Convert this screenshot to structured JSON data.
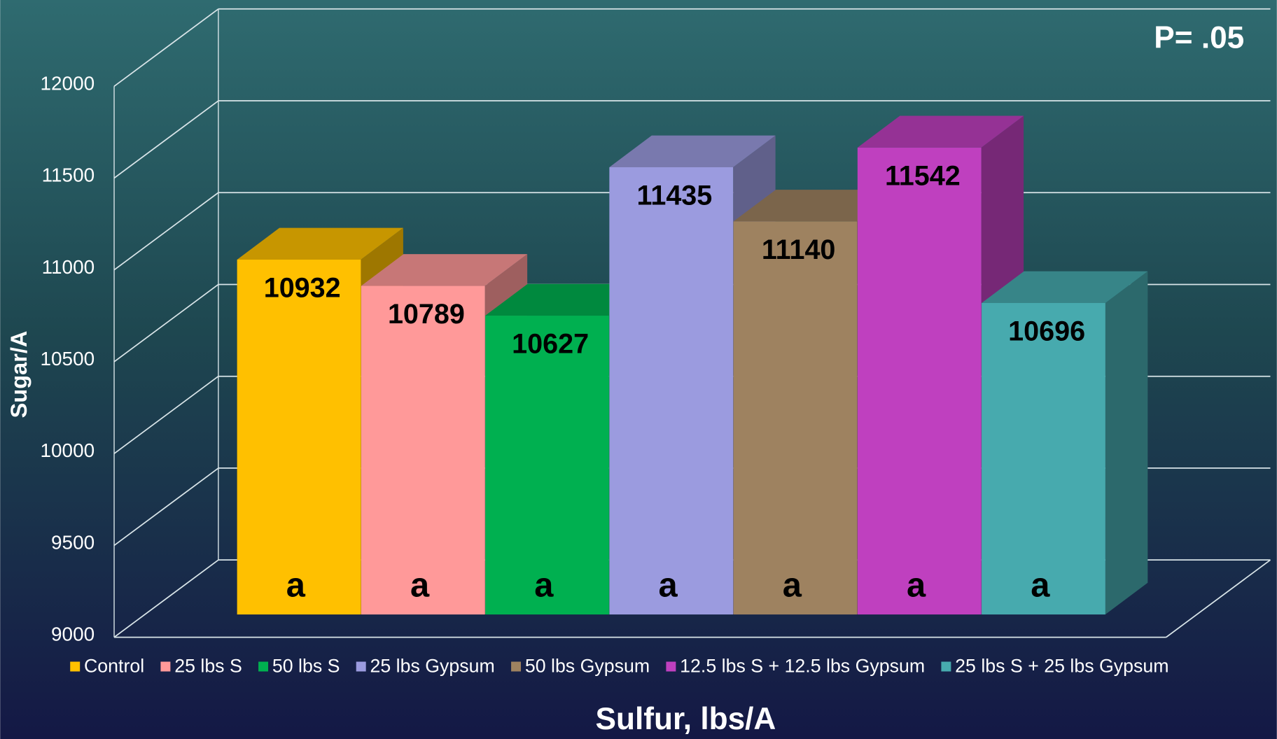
{
  "chart_data": {
    "type": "bar3d",
    "x_label": "Sulfur, lbs/A",
    "y_label": "Sugar/A",
    "annotation": "P= .05",
    "categories": [
      null
    ],
    "series": [
      {
        "name": "Control",
        "color": "#FFC000",
        "values": [
          10932
        ],
        "letters": [
          "a"
        ]
      },
      {
        "name": "25 lbs S",
        "color": "#FF9999",
        "values": [
          10789
        ],
        "letters": [
          "a"
        ]
      },
      {
        "name": "50 lbs S",
        "color": "#00B050",
        "values": [
          10627
        ],
        "letters": [
          "a"
        ]
      },
      {
        "name": "25 lbs Gypsum",
        "color": "#9B9BDF",
        "values": [
          11435
        ],
        "letters": [
          "a"
        ]
      },
      {
        "name": "50 lbs Gypsum",
        "color": "#9E8260",
        "values": [
          11140
        ],
        "letters": [
          "a"
        ]
      },
      {
        "name": "12.5 lbs S + 12.5 lbs Gypsum",
        "color": "#BF40BF",
        "values": [
          11542
        ],
        "letters": [
          "a"
        ]
      },
      {
        "name": "25 lbs S + 25 lbs Gypsum",
        "color": "#47AAAE",
        "values": [
          10696
        ],
        "letters": [
          "a"
        ]
      }
    ],
    "ylim": [
      9000,
      12000
    ],
    "yticks": [
      9000,
      9500,
      10000,
      10500,
      11000,
      11500,
      12000
    ],
    "grid": true,
    "legend": "bottom"
  }
}
